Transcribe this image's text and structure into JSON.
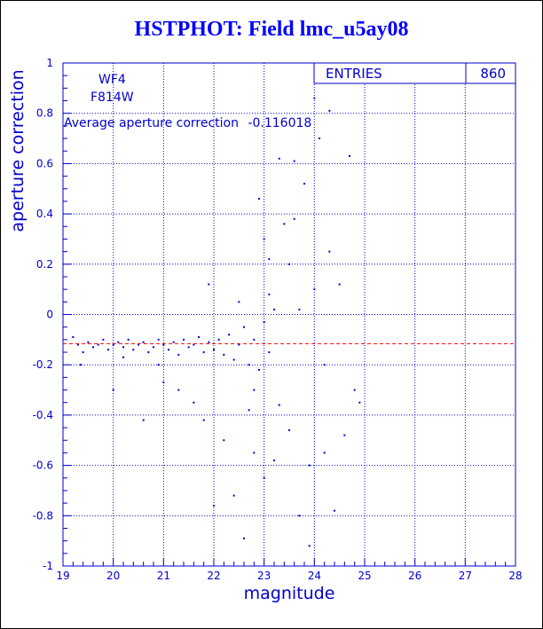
{
  "title": "HSTPHOT: Field lmc_u5ay08",
  "chart_data": {
    "type": "scatter",
    "title": "HSTPHOT: Field lmc_u5ay08",
    "xlabel": "magnitude",
    "ylabel": "aperture correction",
    "xlim": [
      19,
      28
    ],
    "ylim": [
      -1,
      1
    ],
    "xticks": [
      "19",
      "20",
      "21",
      "22",
      "23",
      "24",
      "25",
      "26",
      "27",
      "28"
    ],
    "yticks": [
      "-1",
      "-0.8",
      "-0.6",
      "-0.4",
      "-0.2",
      "0",
      "0.2",
      "0.4",
      "0.6",
      "0.8",
      "1"
    ],
    "grid": true,
    "stats_box": {
      "label": "ENTRIES",
      "value": "860"
    },
    "annotations": {
      "chip": "WF4",
      "filter": "F814W",
      "average_label": "Average aperture correction",
      "average_value": "-0.116018"
    },
    "mean_line": {
      "y": -0.116018,
      "color": "#ff0000",
      "style": "dashed"
    },
    "n_points": 860,
    "points": [
      [
        19.3,
        -0.12
      ],
      [
        19.4,
        -0.15
      ],
      [
        19.5,
        -0.11
      ],
      [
        19.6,
        -0.13
      ],
      [
        19.7,
        -0.12
      ],
      [
        19.8,
        -0.1
      ],
      [
        19.9,
        -0.14
      ],
      [
        20.0,
        -0.12
      ],
      [
        20.1,
        -0.11
      ],
      [
        20.2,
        -0.13
      ],
      [
        20.3,
        -0.1
      ],
      [
        20.4,
        -0.14
      ],
      [
        20.5,
        -0.12
      ],
      [
        20.6,
        -0.11
      ],
      [
        20.7,
        -0.15
      ],
      [
        20.8,
        -0.13
      ],
      [
        20.9,
        -0.1
      ],
      [
        21.0,
        -0.12
      ],
      [
        21.1,
        -0.14
      ],
      [
        21.2,
        -0.11
      ],
      [
        21.3,
        -0.16
      ],
      [
        21.4,
        -0.1
      ],
      [
        21.5,
        -0.13
      ],
      [
        21.6,
        -0.12
      ],
      [
        21.7,
        -0.09
      ],
      [
        21.8,
        -0.15
      ],
      [
        21.9,
        -0.11
      ],
      [
        22.0,
        -0.14
      ],
      [
        22.1,
        -0.1
      ],
      [
        22.2,
        -0.16
      ],
      [
        22.3,
        -0.08
      ],
      [
        22.4,
        -0.18
      ],
      [
        22.5,
        -0.12
      ],
      [
        22.6,
        -0.05
      ],
      [
        22.7,
        -0.2
      ],
      [
        22.8,
        -0.1
      ],
      [
        22.9,
        -0.22
      ],
      [
        23.0,
        -0.03
      ],
      [
        23.1,
        -0.15
      ],
      [
        23.2,
        0.02
      ],
      [
        19.2,
        -0.09
      ],
      [
        19.35,
        -0.2
      ],
      [
        20.0,
        -0.3
      ],
      [
        20.2,
        -0.17
      ],
      [
        20.6,
        -0.42
      ],
      [
        20.9,
        -0.2
      ],
      [
        21.0,
        -0.27
      ],
      [
        21.3,
        -0.3
      ],
      [
        21.6,
        -0.35
      ],
      [
        21.8,
        -0.42
      ],
      [
        21.9,
        0.12
      ],
      [
        22.0,
        -0.76
      ],
      [
        22.2,
        -0.5
      ],
      [
        22.4,
        -0.72
      ],
      [
        22.6,
        -0.89
      ],
      [
        22.7,
        -0.38
      ],
      [
        22.8,
        -0.55
      ],
      [
        22.9,
        0.46
      ],
      [
        23.0,
        -0.65
      ],
      [
        23.0,
        0.3
      ],
      [
        23.1,
        0.22
      ],
      [
        23.2,
        -0.58
      ],
      [
        23.3,
        0.62
      ],
      [
        23.4,
        0.36
      ],
      [
        23.5,
        -0.46
      ],
      [
        23.5,
        0.2
      ],
      [
        23.6,
        0.38
      ],
      [
        23.7,
        -0.8
      ],
      [
        23.8,
        0.52
      ],
      [
        23.9,
        -0.92
      ],
      [
        24.0,
        0.86
      ],
      [
        24.0,
        0.1
      ],
      [
        24.1,
        0.7
      ],
      [
        24.2,
        -0.55
      ],
      [
        24.3,
        0.25
      ],
      [
        24.4,
        -0.78
      ],
      [
        24.5,
        0.12
      ],
      [
        24.6,
        -0.48
      ],
      [
        24.7,
        0.63
      ],
      [
        24.8,
        -0.3
      ],
      [
        24.9,
        -0.35
      ],
      [
        24.3,
        0.81
      ],
      [
        23.6,
        0.61
      ],
      [
        23.3,
        -0.36
      ],
      [
        23.1,
        0.08
      ],
      [
        23.7,
        0.02
      ],
      [
        24.2,
        -0.2
      ],
      [
        22.5,
        0.05
      ],
      [
        22.8,
        -0.3
      ],
      [
        23.9,
        -0.6
      ]
    ]
  }
}
